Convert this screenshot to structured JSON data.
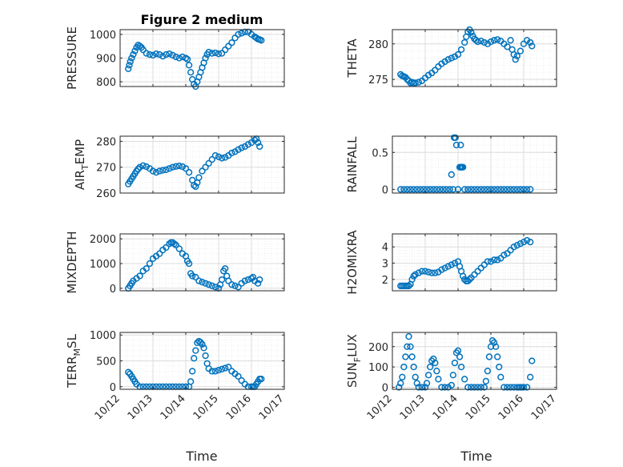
{
  "figure_title": "Figure 2 medium",
  "x_axis_label": "Time",
  "x_tick_labels": [
    "10/12",
    "10/13",
    "10/14",
    "10/15",
    "10/16",
    "10/17"
  ],
  "colors": {
    "marker": "#0072BD",
    "axis": "#262626",
    "grid": "#DCDCDC",
    "minor_grid": "#EBEBEB"
  },
  "chart_data": [
    {
      "type": "scatter",
      "ylabel": "PRESSURE",
      "ylim": [
        780,
        1020
      ],
      "yticks": [
        800,
        900,
        1000
      ],
      "grid": "major+minor",
      "title": "Figure 2 medium",
      "x": [
        12.25,
        12.28,
        12.31,
        12.35,
        12.4,
        12.45,
        12.5,
        12.55,
        12.6,
        12.65,
        12.7,
        12.8,
        12.9,
        13.0,
        13.1,
        13.2,
        13.3,
        13.4,
        13.5,
        13.6,
        13.7,
        13.8,
        13.9,
        14.0,
        14.05,
        14.1,
        14.15,
        14.2,
        14.25,
        14.3,
        14.35,
        14.4,
        14.45,
        14.5,
        14.55,
        14.6,
        14.65,
        14.7,
        14.8,
        14.9,
        15.0,
        15.1,
        15.2,
        15.3,
        15.4,
        15.5,
        15.6,
        15.7,
        15.8,
        15.9,
        16.0,
        16.1,
        16.15,
        16.2,
        16.25,
        16.3
      ],
      "y": [
        855,
        870,
        885,
        900,
        915,
        930,
        945,
        955,
        950,
        945,
        935,
        920,
        915,
        912,
        918,
        915,
        908,
        915,
        918,
        912,
        905,
        900,
        905,
        900,
        895,
        870,
        840,
        810,
        790,
        780,
        800,
        820,
        840,
        860,
        880,
        900,
        915,
        925,
        920,
        922,
        918,
        920,
        935,
        950,
        965,
        985,
        1000,
        1005,
        1010,
        1010,
        1000,
        990,
        985,
        980,
        978,
        975
      ]
    },
    {
      "type": "scatter",
      "ylabel": "THETA",
      "ylim": [
        274,
        282
      ],
      "yticks": [
        275,
        280
      ],
      "grid": "major+minor",
      "x": [
        12.25,
        12.3,
        12.35,
        12.4,
        12.45,
        12.5,
        12.55,
        12.6,
        12.65,
        12.7,
        12.8,
        12.9,
        13.0,
        13.1,
        13.2,
        13.3,
        13.4,
        13.5,
        13.6,
        13.7,
        13.8,
        13.9,
        14.0,
        14.1,
        14.2,
        14.25,
        14.3,
        14.35,
        14.4,
        14.45,
        14.5,
        14.55,
        14.6,
        14.7,
        14.8,
        14.9,
        15.0,
        15.1,
        15.2,
        15.3,
        15.4,
        15.5,
        15.6,
        15.65,
        15.7,
        15.75,
        15.8,
        15.9,
        16.0,
        16.1,
        16.2,
        16.25
      ],
      "y": [
        275.7,
        275.5,
        275.4,
        275.3,
        275.0,
        274.8,
        274.5,
        274.6,
        274.5,
        274.5,
        274.6,
        274.8,
        275.2,
        275.6,
        275.9,
        276.3,
        276.8,
        277.2,
        277.5,
        277.8,
        278.0,
        278.2,
        278.5,
        279.2,
        280.2,
        281.0,
        281.7,
        282.0,
        281.6,
        281.1,
        280.7,
        280.5,
        280.3,
        280.4,
        280.2,
        280.0,
        280.3,
        280.5,
        280.6,
        280.4,
        280.0,
        279.6,
        280.5,
        279.2,
        278.5,
        277.8,
        278.3,
        279.0,
        280.0,
        280.5,
        280.2,
        279.7
      ]
    },
    {
      "type": "scatter",
      "ylabel": "AIR_TEMP",
      "ylim": [
        260,
        282
      ],
      "yticks": [
        260,
        270,
        280
      ],
      "grid": "major+minor",
      "x": [
        12.25,
        12.3,
        12.35,
        12.4,
        12.45,
        12.5,
        12.55,
        12.6,
        12.7,
        12.8,
        12.9,
        13.0,
        13.1,
        13.2,
        13.3,
        13.4,
        13.5,
        13.6,
        13.7,
        13.8,
        13.9,
        14.0,
        14.1,
        14.2,
        14.25,
        14.3,
        14.35,
        14.4,
        14.5,
        14.6,
        14.7,
        14.8,
        14.9,
        15.0,
        15.1,
        15.2,
        15.3,
        15.4,
        15.5,
        15.6,
        15.7,
        15.8,
        15.9,
        16.0,
        16.1,
        16.15,
        16.2,
        16.25
      ],
      "y": [
        263.5,
        264.5,
        265.5,
        266.5,
        267.5,
        268.5,
        269.3,
        270.0,
        270.6,
        270.2,
        269.5,
        268.5,
        268.0,
        268.5,
        268.8,
        269.0,
        269.5,
        270.0,
        270.3,
        270.5,
        270.2,
        269.5,
        268.0,
        265.0,
        263.0,
        262.5,
        264.0,
        266.0,
        268.5,
        270.0,
        271.5,
        273.0,
        274.5,
        274.0,
        273.5,
        273.8,
        274.5,
        275.5,
        276.0,
        276.8,
        277.5,
        278.0,
        278.8,
        279.5,
        280.5,
        281.0,
        279.5,
        278.0
      ]
    },
    {
      "type": "scatter",
      "ylabel": "RAINFALL",
      "ylim": [
        -0.05,
        0.72
      ],
      "yticks": [
        0,
        0.5
      ],
      "grid": "major+minor",
      "x": [
        12.25,
        12.35,
        12.45,
        12.55,
        12.65,
        12.75,
        12.85,
        12.95,
        13.05,
        13.15,
        13.25,
        13.35,
        13.45,
        13.55,
        13.65,
        13.75,
        13.8,
        13.85,
        13.88,
        13.92,
        13.95,
        14.0,
        14.05,
        14.07,
        14.08,
        14.1,
        14.12,
        14.15,
        14.2,
        14.3,
        14.4,
        14.5,
        14.6,
        14.7,
        14.8,
        14.9,
        15.0,
        15.1,
        15.2,
        15.3,
        15.4,
        15.5,
        15.6,
        15.7,
        15.8,
        15.9,
        16.0,
        16.1,
        16.2
      ],
      "y": [
        0,
        0,
        0,
        0,
        0,
        0,
        0,
        0,
        0,
        0,
        0,
        0,
        0,
        0,
        0,
        0,
        0.2,
        0,
        0.7,
        0.7,
        0.6,
        0,
        0.3,
        0.3,
        0.6,
        0.3,
        0.3,
        0.3,
        0,
        0,
        0,
        0,
        0,
        0,
        0,
        0,
        0,
        0,
        0,
        0,
        0,
        0,
        0,
        0,
        0,
        0,
        0,
        0,
        0
      ]
    },
    {
      "type": "scatter",
      "ylabel": "MIXDEPTH",
      "ylim": [
        -100,
        2200
      ],
      "yticks": [
        0,
        1000,
        2000
      ],
      "grid": "major+minor",
      "x": [
        12.25,
        12.3,
        12.35,
        12.4,
        12.5,
        12.6,
        12.7,
        12.8,
        12.9,
        13.0,
        13.1,
        13.2,
        13.3,
        13.4,
        13.5,
        13.55,
        13.6,
        13.65,
        13.7,
        13.8,
        13.9,
        14.0,
        14.05,
        14.1,
        14.15,
        14.2,
        14.3,
        14.4,
        14.5,
        14.6,
        14.7,
        14.8,
        14.9,
        15.0,
        15.05,
        15.1,
        15.15,
        15.2,
        15.25,
        15.3,
        15.4,
        15.5,
        15.6,
        15.7,
        15.8,
        15.9,
        16.0,
        16.05,
        16.1,
        16.2,
        16.25
      ],
      "y": [
        0,
        100,
        200,
        300,
        400,
        500,
        700,
        800,
        1000,
        1200,
        1300,
        1400,
        1550,
        1650,
        1800,
        1850,
        1850,
        1800,
        1750,
        1600,
        1400,
        1300,
        1100,
        1000,
        600,
        500,
        450,
        300,
        250,
        200,
        150,
        100,
        50,
        0,
        150,
        350,
        700,
        800,
        500,
        300,
        150,
        100,
        50,
        200,
        300,
        350,
        400,
        450,
        300,
        200,
        350
      ]
    },
    {
      "type": "scatter",
      "ylabel": "H2OMIXRA",
      "ylim": [
        1.3,
        4.8
      ],
      "yticks": [
        2,
        3,
        4
      ],
      "grid": "major+minor",
      "x": [
        12.25,
        12.3,
        12.35,
        12.4,
        12.45,
        12.5,
        12.55,
        12.6,
        12.65,
        12.7,
        12.8,
        12.9,
        13.0,
        13.1,
        13.2,
        13.3,
        13.4,
        13.5,
        13.6,
        13.7,
        13.8,
        13.9,
        14.0,
        14.05,
        14.1,
        14.15,
        14.2,
        14.25,
        14.3,
        14.35,
        14.4,
        14.5,
        14.6,
        14.7,
        14.8,
        14.9,
        15.0,
        15.1,
        15.2,
        15.3,
        15.4,
        15.5,
        15.6,
        15.7,
        15.8,
        15.9,
        16.0,
        16.1,
        16.2
      ],
      "y": [
        1.6,
        1.6,
        1.6,
        1.6,
        1.6,
        1.6,
        1.7,
        2.0,
        2.2,
        2.3,
        2.4,
        2.5,
        2.5,
        2.45,
        2.4,
        2.4,
        2.45,
        2.6,
        2.7,
        2.8,
        2.9,
        3.0,
        3.1,
        2.8,
        2.5,
        2.2,
        2.0,
        1.9,
        1.9,
        2.0,
        2.1,
        2.3,
        2.5,
        2.7,
        2.9,
        3.1,
        3.1,
        3.2,
        3.2,
        3.3,
        3.5,
        3.6,
        3.8,
        4.0,
        4.1,
        4.2,
        4.3,
        4.4,
        4.3
      ]
    },
    {
      "type": "scatter",
      "ylabel": "TERR_MSL",
      "ylim": [
        -50,
        1050
      ],
      "yticks": [
        0,
        500,
        1000
      ],
      "grid": "major+minor",
      "x": [
        12.25,
        12.3,
        12.35,
        12.4,
        12.45,
        12.5,
        12.6,
        12.7,
        12.8,
        12.9,
        13.0,
        13.1,
        13.2,
        13.3,
        13.4,
        13.5,
        13.6,
        13.7,
        13.8,
        13.9,
        14.0,
        14.1,
        14.15,
        14.2,
        14.25,
        14.3,
        14.35,
        14.4,
        14.45,
        14.5,
        14.55,
        14.6,
        14.65,
        14.7,
        14.8,
        14.9,
        15.0,
        15.1,
        15.2,
        15.3,
        15.4,
        15.5,
        15.6,
        15.7,
        15.8,
        15.9,
        16.0,
        16.05,
        16.1,
        16.15,
        16.2,
        16.25,
        16.3
      ],
      "y": [
        280,
        250,
        200,
        150,
        100,
        50,
        0,
        0,
        0,
        0,
        0,
        0,
        0,
        0,
        0,
        0,
        0,
        0,
        0,
        0,
        0,
        0,
        100,
        300,
        550,
        700,
        850,
        880,
        860,
        820,
        750,
        600,
        450,
        350,
        300,
        300,
        320,
        340,
        360,
        380,
        300,
        250,
        200,
        120,
        50,
        0,
        0,
        0,
        0,
        50,
        100,
        150,
        150
      ]
    },
    {
      "type": "scatter",
      "ylabel": "SUN_FLUX",
      "ylim": [
        -10,
        270
      ],
      "yticks": [
        0,
        100,
        200
      ],
      "grid": "major+minor",
      "x": [
        12.2,
        12.25,
        12.3,
        12.35,
        12.4,
        12.45,
        12.5,
        12.55,
        12.6,
        12.65,
        12.7,
        12.75,
        12.8,
        12.9,
        13.0,
        13.05,
        13.1,
        13.15,
        13.2,
        13.25,
        13.3,
        13.35,
        13.4,
        13.5,
        13.6,
        13.7,
        13.8,
        13.85,
        13.9,
        13.95,
        14.0,
        14.05,
        14.1,
        14.2,
        14.3,
        14.4,
        14.5,
        14.6,
        14.7,
        14.8,
        14.85,
        14.9,
        14.95,
        15.0,
        15.05,
        15.1,
        15.15,
        15.2,
        15.25,
        15.3,
        15.4,
        15.5,
        15.6,
        15.7,
        15.8,
        15.85,
        15.9,
        15.95,
        16.0,
        16.1,
        16.2,
        16.25
      ],
      "y": [
        0,
        20,
        50,
        100,
        150,
        200,
        250,
        200,
        150,
        100,
        50,
        20,
        0,
        0,
        0,
        20,
        60,
        100,
        130,
        140,
        120,
        80,
        40,
        0,
        0,
        0,
        10,
        60,
        120,
        170,
        180,
        150,
        100,
        40,
        0,
        0,
        0,
        0,
        0,
        0,
        30,
        80,
        150,
        200,
        230,
        220,
        200,
        150,
        100,
        50,
        0,
        0,
        0,
        0,
        0,
        0,
        0,
        0,
        0,
        0,
        50,
        130
      ]
    }
  ]
}
